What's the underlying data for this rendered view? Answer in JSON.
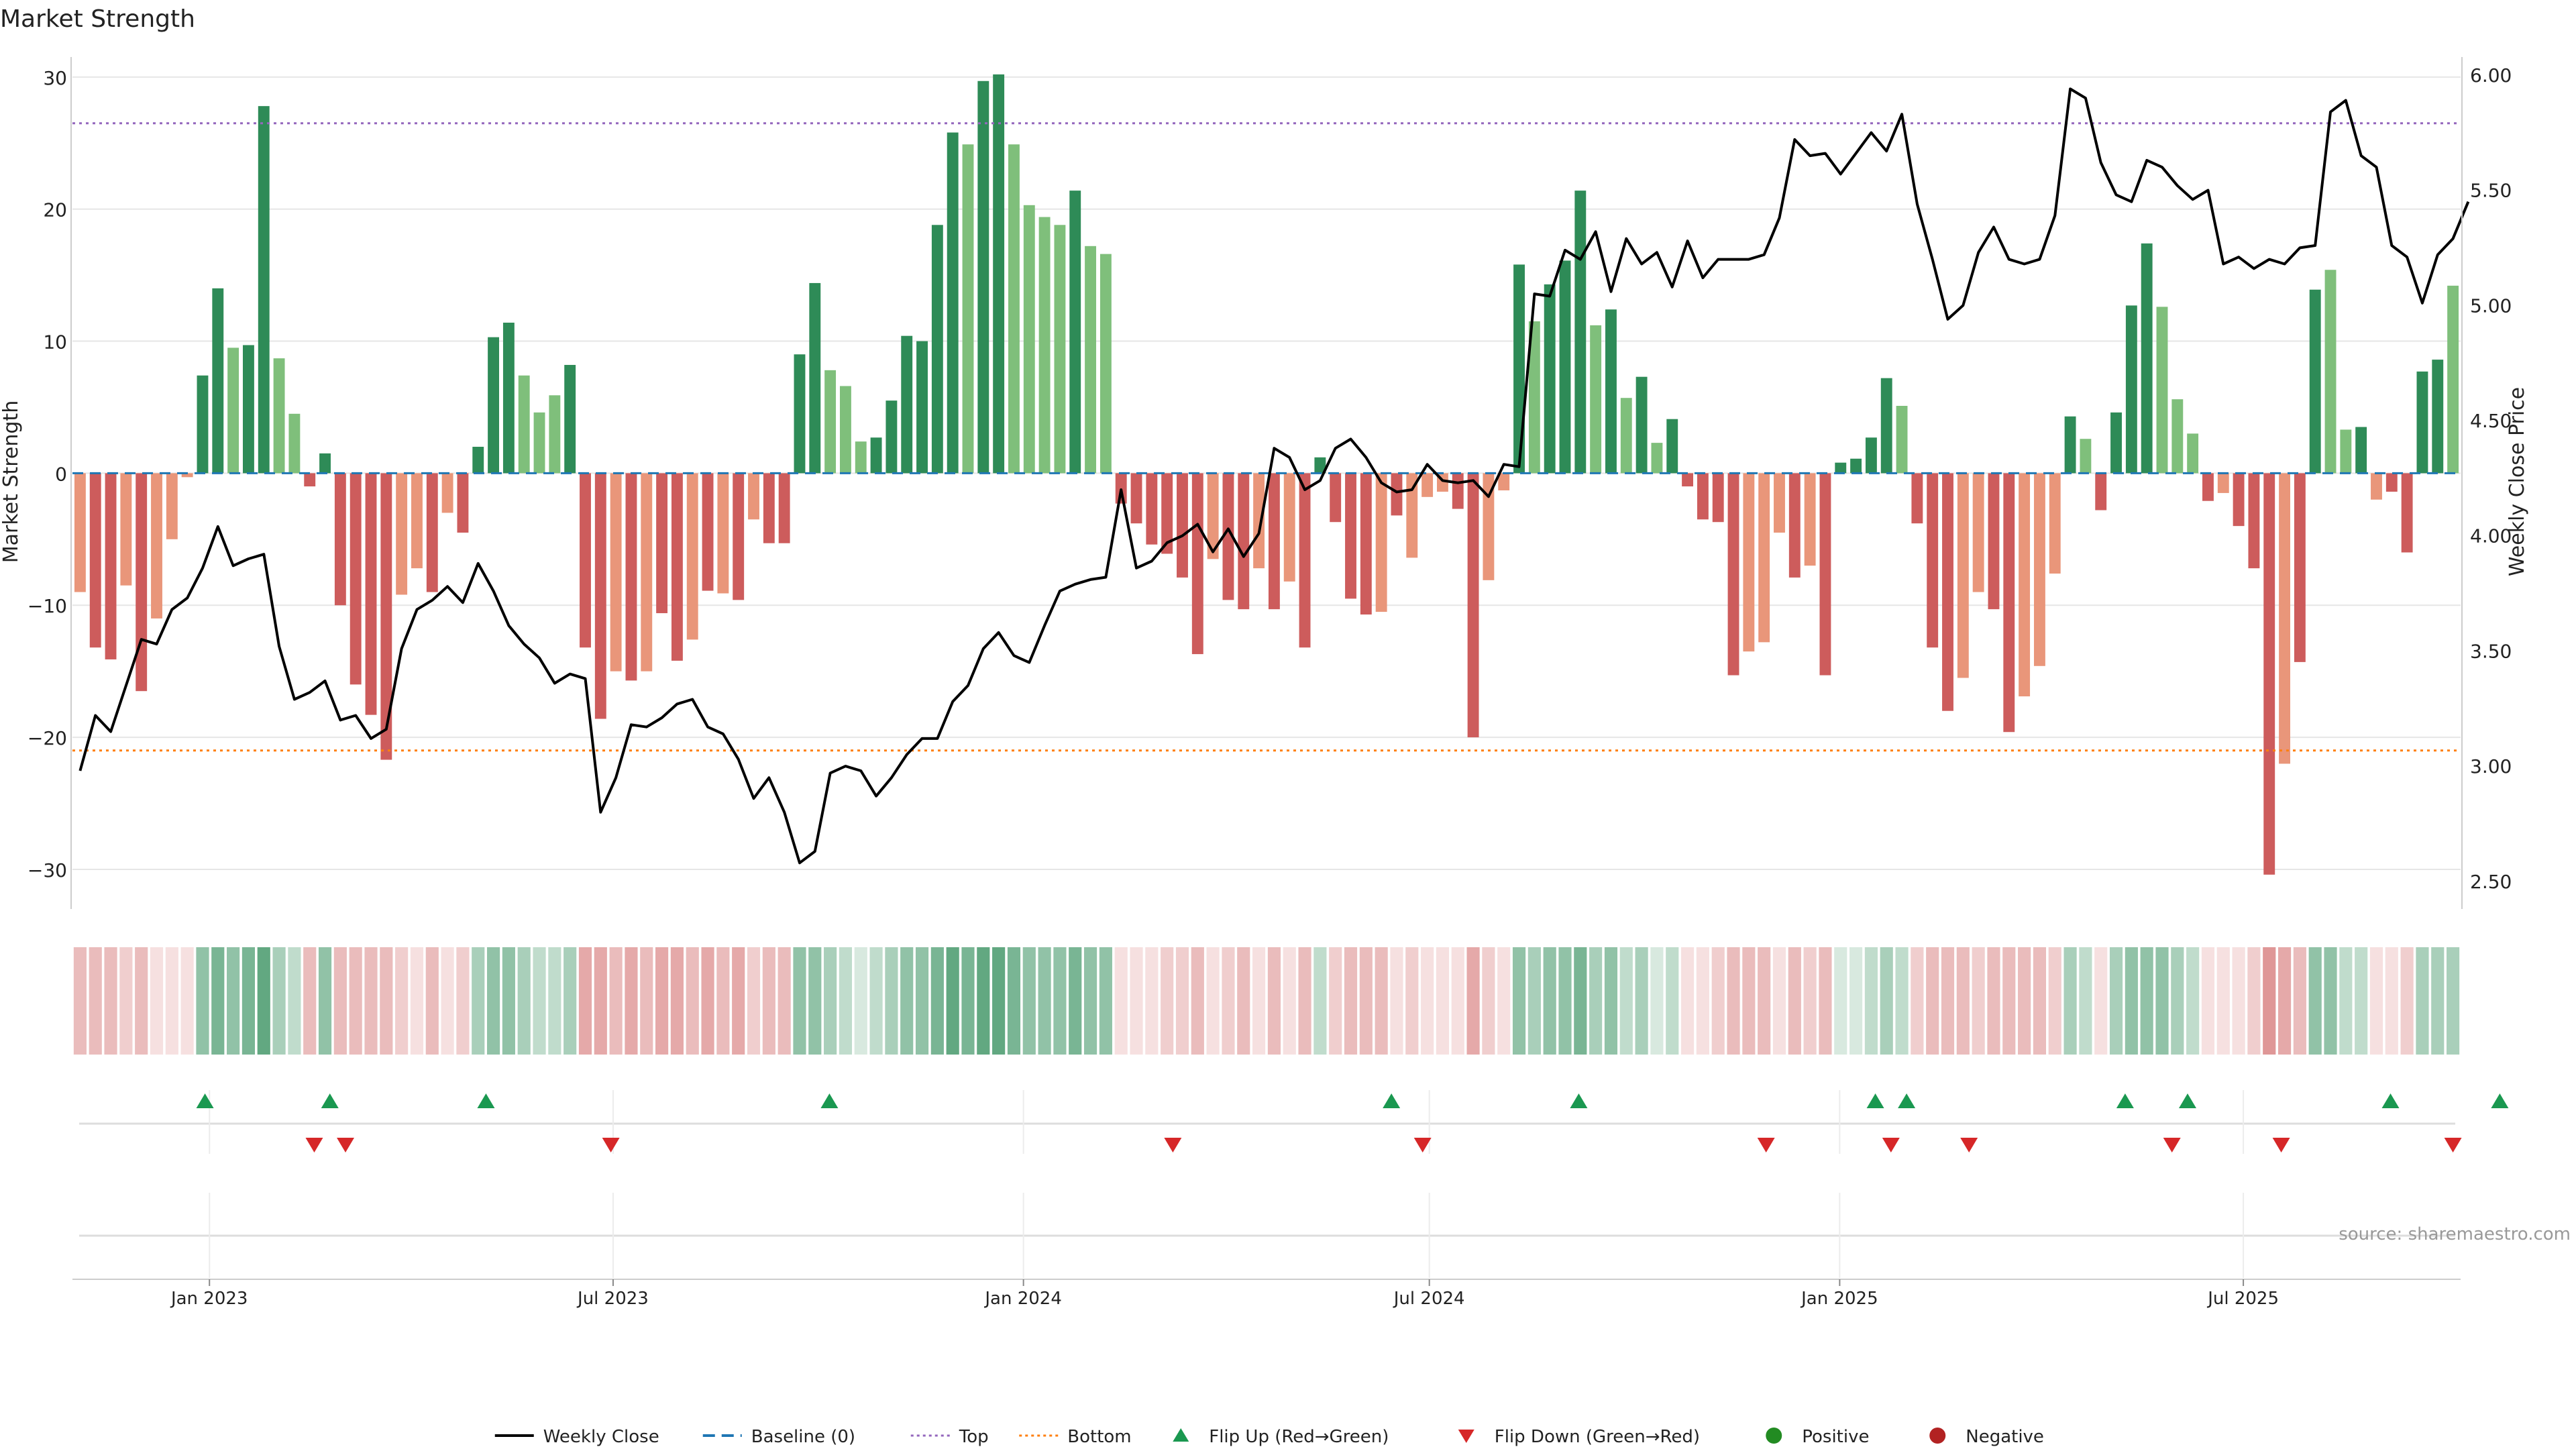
{
  "title": "Market Strength",
  "source": "source: sharemaestro.com",
  "colors": {
    "pos_strong": "#2e8b57",
    "pos_light": "#7fbf7b",
    "neg_strong": "#cd5c5c",
    "neg_light": "#e9967a",
    "price_line": "#000000",
    "baseline": "#1f77b4",
    "top_line": "#9467bd",
    "bottom_line": "#ff7f0e",
    "flip_up": "#1a9850",
    "flip_down": "#d62728",
    "positive_dot": "#228b22",
    "negative_dot": "#b22222",
    "grid": "#e6e6e6"
  },
  "chart_data": {
    "type": "bar",
    "ylabel": "Market Strength",
    "y2label": "Weekly Close Price",
    "ylim": [
      -33,
      30.5
    ],
    "y2lim": [
      2.38,
      6.02
    ],
    "yticks": [
      -30,
      -20,
      -10,
      0,
      10,
      20,
      30
    ],
    "y2ticks": [
      2.5,
      3.0,
      3.5,
      4.0,
      4.5,
      5.0,
      5.5,
      6.0
    ],
    "y2tick_labels": [
      "2.50",
      "3.00",
      "3.50",
      "4.00",
      "4.50",
      "5.00",
      "5.50",
      "6.00"
    ],
    "top_level": 26.5,
    "bottom_level": -21,
    "baseline": 0,
    "x_start": "2022-11-04",
    "x_end": "2025-10-03",
    "xticks": [
      {
        "date": "2023-01-01",
        "label": "Jan 2023"
      },
      {
        "date": "2023-07-01",
        "label": "Jul 2023"
      },
      {
        "date": "2024-01-01",
        "label": "Jan 2024"
      },
      {
        "date": "2024-07-01",
        "label": "Jul 2024"
      },
      {
        "date": "2025-01-01",
        "label": "Jan 2025"
      },
      {
        "date": "2025-07-01",
        "label": "Jul 2025"
      }
    ],
    "strength": [
      -9,
      -13.2,
      -14.1,
      -8.5,
      -16.5,
      -11,
      -5,
      -0.3,
      7.4,
      14,
      9.5,
      9.7,
      27.8,
      8.7,
      4.5,
      -1,
      1.5,
      -10,
      -16,
      -18.3,
      -21.7,
      -9.2,
      -7.2,
      -9,
      -3,
      -4.5,
      2,
      10.3,
      11.4,
      7.4,
      4.6,
      5.9,
      8.2,
      -13.2,
      -18.6,
      -15,
      -15.7,
      -15,
      -10.6,
      -14.2,
      -12.6,
      -8.9,
      -9.1,
      -9.6,
      -3.5,
      -5.3,
      -5.3,
      9,
      14.4,
      7.8,
      6.6,
      2.4,
      2.7,
      5.5,
      10.4,
      10,
      18.8,
      25.8,
      24.9,
      29.7,
      30.2,
      24.9,
      20.3,
      19.4,
      18.8,
      21.4,
      17.2,
      16.6,
      -2.3,
      -3.8,
      -5.4,
      -6.1,
      -7.9,
      -13.7,
      -6.5,
      -9.6,
      -10.3,
      -7.2,
      -10.3,
      -8.2,
      -13.2,
      1.2,
      -3.7,
      -9.5,
      -10.7,
      -10.5,
      -3.2,
      -6.4,
      -1.8,
      -1.4,
      -2.7,
      -20,
      -8.1,
      -1.3,
      15.8,
      11.5,
      14.3,
      16.1,
      21.4,
      11.2,
      12.4,
      5.7,
      7.3,
      2.3,
      4.1,
      -1,
      -3.5,
      -3.7,
      -15.3,
      -13.5,
      -12.8,
      -4.5,
      -7.9,
      -7,
      -15.3,
      0.8,
      1.1,
      2.7,
      7.2,
      5.1,
      -3.8,
      -13.2,
      -18,
      -15.5,
      -9,
      -10.3,
      -19.6,
      -16.9,
      -14.6,
      -7.6,
      4.3,
      2.6,
      -2.8,
      4.6,
      12.7,
      17.4,
      12.6,
      5.6,
      3,
      -2.1,
      -1.5,
      -4,
      -7.2,
      -30.4,
      -22,
      -14.3,
      13.9,
      15.4,
      3.3,
      3.5,
      -2,
      -1.4,
      -6,
      7.7,
      8.6,
      14.2
    ],
    "strength_shade": [
      0,
      1,
      1,
      0,
      1,
      0,
      0,
      0,
      1,
      1,
      0,
      1,
      1,
      0,
      0,
      1,
      1,
      1,
      1,
      1,
      1,
      0,
      0,
      1,
      0,
      1,
      1,
      1,
      1,
      0,
      0,
      0,
      1,
      1,
      1,
      0,
      1,
      0,
      1,
      1,
      0,
      1,
      0,
      1,
      0,
      1,
      1,
      1,
      1,
      0,
      0,
      0,
      1,
      1,
      1,
      1,
      1,
      1,
      0,
      1,
      1,
      0,
      0,
      0,
      0,
      1,
      0,
      0,
      1,
      1,
      1,
      1,
      1,
      1,
      0,
      1,
      1,
      0,
      1,
      0,
      1,
      1,
      1,
      1,
      1,
      0,
      1,
      0,
      0,
      0,
      1,
      1,
      0,
      0,
      1,
      0,
      1,
      1,
      1,
      0,
      1,
      0,
      1,
      0,
      1,
      1,
      1,
      1,
      1,
      0,
      0,
      0,
      1,
      0,
      1,
      1,
      1,
      1,
      1,
      0,
      1,
      1,
      1,
      0,
      0,
      1,
      1,
      0,
      0,
      0,
      1,
      0,
      1,
      1,
      1,
      1,
      0,
      0,
      0,
      1,
      0,
      1,
      1,
      1,
      0,
      1,
      1,
      0,
      0,
      1,
      0,
      1,
      1,
      1,
      1
    ],
    "price": [
      2.98,
      3.22,
      3.15,
      3.35,
      3.55,
      3.53,
      3.68,
      3.73,
      3.86,
      4.04,
      3.87,
      3.9,
      3.92,
      3.52,
      3.29,
      3.32,
      3.37,
      3.2,
      3.22,
      3.12,
      3.16,
      3.51,
      3.68,
      3.72,
      3.78,
      3.71,
      3.88,
      3.76,
      3.61,
      3.53,
      3.47,
      3.36,
      3.4,
      3.38,
      2.8,
      2.95,
      3.18,
      3.17,
      3.21,
      3.27,
      3.29,
      3.17,
      3.14,
      3.03,
      2.86,
      2.95,
      2.8,
      2.58,
      2.63,
      2.97,
      3.0,
      2.98,
      2.87,
      2.95,
      3.05,
      3.12,
      3.12,
      3.28,
      3.35,
      3.51,
      3.58,
      3.48,
      3.45,
      3.61,
      3.76,
      3.79,
      3.81,
      3.82,
      4.2,
      3.86,
      3.89,
      3.97,
      4.0,
      4.05,
      3.93,
      4.03,
      3.91,
      4.01,
      4.38,
      4.34,
      4.2,
      4.24,
      4.38,
      4.42,
      4.34,
      4.23,
      4.19,
      4.2,
      4.31,
      4.24,
      4.23,
      4.24,
      4.17,
      4.31,
      4.3,
      5.05,
      5.04,
      5.24,
      5.2,
      5.32,
      5.06,
      5.29,
      5.18,
      5.23,
      5.08,
      5.28,
      5.12,
      5.2,
      5.2,
      5.2,
      5.22,
      5.38,
      5.72,
      5.65,
      5.66,
      5.57,
      5.66,
      5.75,
      5.67,
      5.83,
      5.44,
      5.2,
      4.94,
      5.0,
      5.23,
      5.34,
      5.2,
      5.18,
      5.2,
      5.39,
      5.94,
      5.9,
      5.62,
      5.48,
      5.45,
      5.63,
      5.6,
      5.52,
      5.46,
      5.5,
      5.18,
      5.21,
      5.16,
      5.2,
      5.18,
      5.25,
      5.26,
      5.84,
      5.89,
      5.65,
      5.6,
      5.26,
      5.21,
      5.01,
      5.22,
      5.29,
      5.45
    ],
    "heatmap_levels": [
      3,
      3,
      3,
      2,
      3,
      1,
      1,
      1,
      4,
      5,
      4,
      5,
      6,
      3,
      2,
      3,
      4,
      3,
      3,
      3,
      3,
      2,
      1,
      3,
      1,
      2,
      3,
      4,
      4,
      3,
      2,
      2,
      3,
      4,
      4,
      3,
      4,
      3,
      4,
      4,
      3,
      4,
      3,
      4,
      2,
      3,
      3,
      4,
      4,
      3,
      2,
      1,
      2,
      3,
      4,
      4,
      5,
      6,
      5,
      6,
      6,
      5,
      4,
      4,
      4,
      5,
      4,
      4,
      1,
      1,
      1,
      2,
      2,
      3,
      1,
      2,
      3,
      1,
      3,
      1,
      3,
      2,
      2,
      3,
      3,
      3,
      1,
      2,
      1,
      1,
      1,
      4,
      2,
      1,
      4,
      3,
      4,
      4,
      5,
      3,
      4,
      2,
      3,
      1,
      2,
      1,
      1,
      2,
      3,
      3,
      3,
      1,
      3,
      2,
      3,
      1,
      1,
      2,
      3,
      2,
      2,
      3,
      3,
      3,
      2,
      3,
      3,
      3,
      3,
      2,
      3,
      2,
      1,
      3,
      4,
      4,
      4,
      3,
      2,
      1,
      1,
      1,
      2,
      5,
      4,
      3,
      4,
      4,
      2,
      2,
      1,
      1,
      2,
      3,
      3,
      3
    ],
    "flip_up": [
      "2022-12-30",
      "2023-02-24",
      "2023-05-05",
      "2023-10-06",
      "2024-06-14",
      "2024-09-06",
      "2025-01-17",
      "2025-01-31",
      "2025-05-09",
      "2025-06-06",
      "2025-09-05",
      "2025-10-24"
    ],
    "flip_down": [
      "2023-02-17",
      "2023-03-03",
      "2023-06-30",
      "2024-03-08",
      "2024-06-28",
      "2024-11-29",
      "2025-01-24",
      "2025-02-28",
      "2025-05-30",
      "2025-07-18",
      "2025-10-03"
    ]
  },
  "legend": {
    "items": [
      {
        "kind": "line",
        "label": "Weekly Close"
      },
      {
        "kind": "baseline",
        "label": "Baseline (0)"
      },
      {
        "kind": "top",
        "label": "Top"
      },
      {
        "kind": "bottom",
        "label": "Bottom"
      },
      {
        "kind": "flip-up",
        "label": "Flip Up (Red→Green)"
      },
      {
        "kind": "flip-down",
        "label": "Flip Down (Green→Red)"
      },
      {
        "kind": "positive",
        "label": "Positive"
      },
      {
        "kind": "negative",
        "label": "Negative"
      }
    ]
  }
}
